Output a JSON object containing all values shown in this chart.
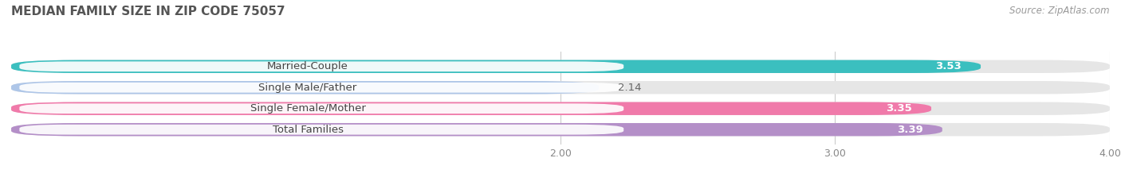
{
  "title": "MEDIAN FAMILY SIZE IN ZIP CODE 75057",
  "source": "Source: ZipAtlas.com",
  "categories": [
    "Married-Couple",
    "Single Male/Father",
    "Single Female/Mother",
    "Total Families"
  ],
  "values": [
    3.53,
    2.14,
    3.35,
    3.39
  ],
  "colors": [
    "#3bbfbf",
    "#aec6e8",
    "#f07aaa",
    "#b48fc8"
  ],
  "bar_bg_color": "#e4e4e4",
  "xlim_left": 0.0,
  "xlim_right": 4.0,
  "xstart": 0.0,
  "xticks": [
    2.0,
    3.0,
    4.0
  ],
  "background_color": "#ffffff",
  "bar_background": "#e6e6e6",
  "bar_height": 0.62,
  "bar_gap": 1.0,
  "label_fontsize": 9.5,
  "value_fontsize": 9.5,
  "title_fontsize": 11,
  "source_fontsize": 8.5
}
